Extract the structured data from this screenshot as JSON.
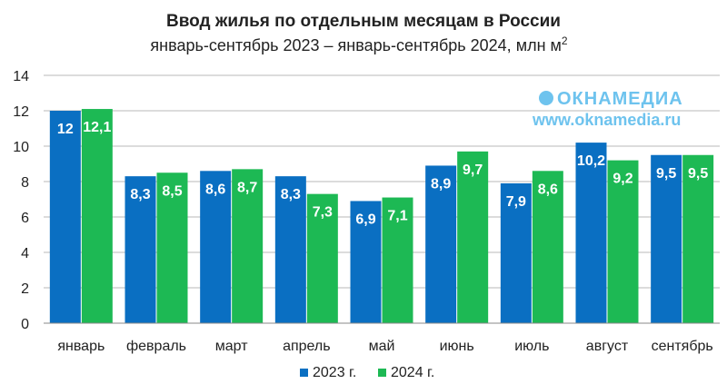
{
  "chart_data": {
    "type": "bar",
    "title": "Ввод жилья по отдельным месяцам в России",
    "subtitle": "январь-сентябрь 2023 – январь-сентябрь 2024, млн м",
    "subtitle_sup": "2",
    "categories": [
      "январь",
      "февраль",
      "март",
      "апрель",
      "май",
      "июнь",
      "июль",
      "август",
      "сентябрь"
    ],
    "series": [
      {
        "name": "2023 г.",
        "color": "#0a6fc2",
        "values": [
          12,
          8.3,
          8.6,
          8.3,
          6.9,
          8.9,
          7.9,
          10.2,
          9.5
        ],
        "labels": [
          "12",
          "8,3",
          "8,6",
          "8,3",
          "6,9",
          "8,9",
          "7,9",
          "10,2",
          "9,5"
        ]
      },
      {
        "name": "2024 г.",
        "color": "#1db954",
        "values": [
          12.1,
          8.5,
          8.7,
          7.3,
          7.1,
          9.7,
          8.6,
          9.2,
          9.5
        ],
        "labels": [
          "12,1",
          "8,5",
          "8,7",
          "7,3",
          "7,1",
          "9,7",
          "8,6",
          "9,2",
          "9,5"
        ]
      }
    ],
    "ylim": [
      0,
      14
    ],
    "yticks": [
      0,
      2,
      4,
      6,
      8,
      10,
      12,
      14
    ],
    "grid": true,
    "legend": "bottom-center",
    "xlabel": "",
    "ylabel": ""
  },
  "watermark": {
    "name": "ОКНАМЕДИА",
    "url": "www.oknamedia.ru"
  }
}
